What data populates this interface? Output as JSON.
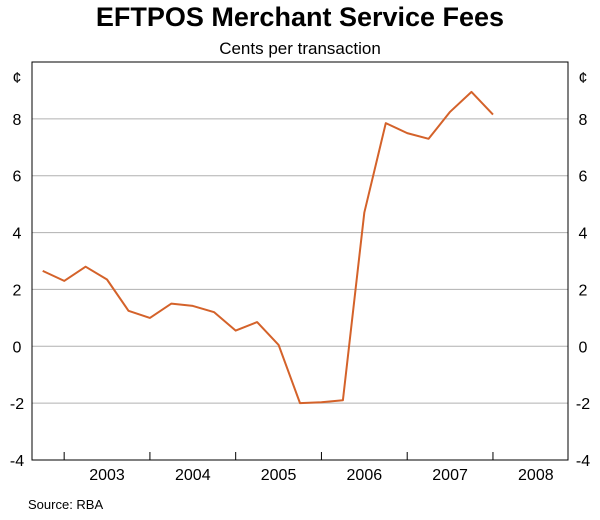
{
  "chart_data": {
    "type": "line",
    "title": "EFTPOS Merchant Service Fees",
    "subtitle": "Cents per transaction",
    "unit_left": "¢",
    "unit_right": "¢",
    "source": "Source: RBA",
    "ylim": [
      -4,
      10
    ],
    "yticks": [
      -4,
      -2,
      0,
      2,
      4,
      6,
      8
    ],
    "xlim": [
      2002.625,
      2008.875
    ],
    "year_labels": [
      "2003",
      "2004",
      "2005",
      "2006",
      "2007",
      "2008"
    ],
    "grid": true,
    "colors": {
      "line": "#d4622a",
      "grid": "#b0b0b0",
      "axis": "#000000"
    },
    "series": [
      {
        "x": [
          2002.75,
          2003.0,
          2003.25,
          2003.5,
          2003.75,
          2004.0,
          2004.25,
          2004.5,
          2004.75,
          2005.0,
          2005.25,
          2005.5,
          2005.75,
          2006.0,
          2006.25,
          2006.5,
          2006.75,
          2007.0,
          2007.25,
          2007.5,
          2007.75,
          2008.0,
          2008.25
        ],
        "values": [
          2.65,
          2.3,
          2.8,
          2.35,
          1.25,
          1.0,
          1.5,
          1.42,
          1.2,
          0.55,
          0.85,
          0.05,
          -2.0,
          -1.97,
          -1.9,
          4.7,
          7.85,
          7.5,
          7.3,
          8.25,
          8.95,
          8.15,
          null
        ]
      }
    ]
  }
}
